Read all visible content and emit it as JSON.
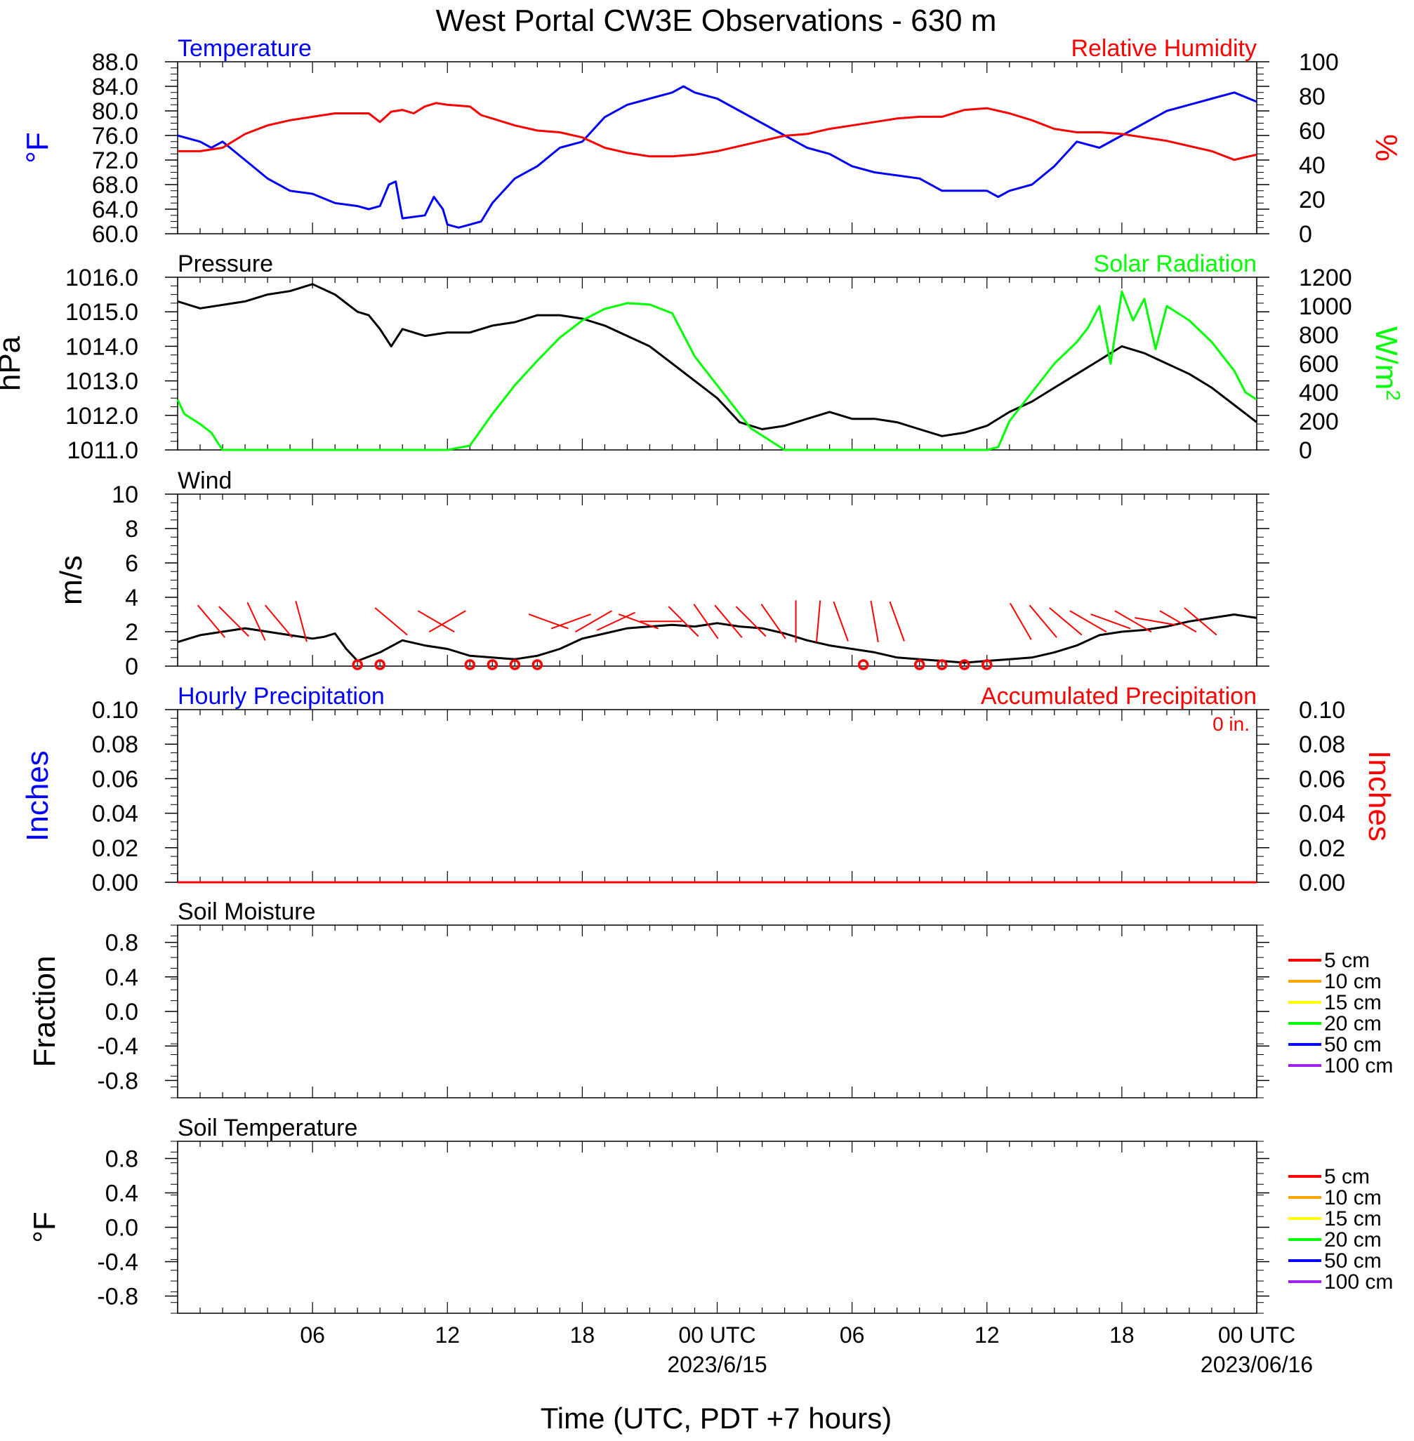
{
  "title": "West Portal CW3E Observations - 630 m",
  "xlabel": "Time (UTC, PDT +7 hours)",
  "x_ticks": [
    "06",
    "12",
    "18",
    "00 UTC",
    "06",
    "12",
    "18",
    "00 UTC"
  ],
  "x_dates": [
    "2023/6/15",
    "2023/06/16"
  ],
  "colors": {
    "blue": "#0000ff",
    "red": "#ff0000",
    "green": "#00ff00",
    "black": "#000000"
  },
  "legend_depths": [
    {
      "label": "5 cm",
      "color": "#ff0000"
    },
    {
      "label": "10 cm",
      "color": "#ffa500"
    },
    {
      "label": "15 cm",
      "color": "#ffff00"
    },
    {
      "label": "20 cm",
      "color": "#00ff00"
    },
    {
      "label": "50 cm",
      "color": "#0000ff"
    },
    {
      "label": "100 cm",
      "color": "#a020f0"
    }
  ],
  "chart_data": [
    {
      "type": "line",
      "title_left": "Temperature",
      "title_right": "Relative Humidity",
      "ylabel_left": "°F",
      "ylabel_right": "%",
      "x_range_hours": [
        0,
        48
      ],
      "ylim_left": [
        60,
        88
      ],
      "ylim_right": [
        0,
        100
      ],
      "yticks_left": [
        "88.0",
        "84.0",
        "80.0",
        "76.0",
        "72.0",
        "68.0",
        "64.0",
        "60.0"
      ],
      "yticks_right": [
        "100",
        "80",
        "60",
        "40",
        "20",
        "0"
      ],
      "series": [
        {
          "name": "Temperature",
          "axis": "left",
          "color": "#0000ff",
          "x": [
            0,
            1,
            1.5,
            2,
            3,
            4,
            5,
            6,
            7,
            8,
            8.5,
            9,
            9.4,
            9.7,
            10,
            11,
            11.4,
            11.8,
            12,
            12.5,
            13,
            13.5,
            14,
            15,
            16,
            17,
            18,
            19,
            20,
            21,
            22,
            22.5,
            23,
            24,
            25,
            26,
            27,
            28,
            29,
            30,
            31,
            32,
            33,
            34,
            35,
            36,
            36.5,
            37,
            38,
            39,
            40,
            41,
            42,
            43,
            44,
            45,
            46,
            47,
            48
          ],
          "y": [
            76,
            75,
            74,
            75,
            72,
            69,
            67,
            66.5,
            65,
            64.5,
            64,
            64.5,
            68,
            68.5,
            62.5,
            63,
            66,
            64,
            61.5,
            61,
            61.5,
            62,
            65,
            69,
            71,
            74,
            75,
            79,
            81,
            82,
            83,
            84,
            83,
            82,
            80,
            78,
            76,
            74,
            73,
            71,
            70,
            69.5,
            69,
            67,
            67,
            67,
            66,
            67,
            68,
            71,
            75,
            74,
            76,
            78,
            80,
            81,
            82,
            83,
            81.5
          ]
        },
        {
          "name": "Relative Humidity",
          "axis": "right",
          "color": "#ff0000",
          "x": [
            0,
            1,
            2,
            3,
            4,
            5,
            6,
            7,
            8,
            8.5,
            9,
            9.5,
            10,
            10.5,
            11,
            11.5,
            12,
            13,
            13.5,
            14,
            15,
            16,
            17,
            18,
            19,
            20,
            21,
            22,
            23,
            24,
            25,
            26,
            27,
            28,
            29,
            30,
            31,
            32,
            33,
            34,
            35,
            36,
            37,
            38,
            39,
            40,
            41,
            42,
            43,
            44,
            45,
            46,
            47,
            48
          ],
          "y": [
            48,
            48,
            50,
            58,
            63,
            66,
            68,
            70,
            70,
            70,
            65,
            71,
            72,
            70,
            74,
            76,
            75,
            74,
            69,
            67,
            63,
            60,
            59,
            56,
            50,
            47,
            45,
            45,
            46,
            48,
            51,
            54,
            57,
            58,
            61,
            63,
            65,
            67,
            68,
            68,
            72,
            73,
            70,
            66,
            61,
            59,
            59,
            58,
            56,
            54,
            51,
            48,
            43,
            46
          ]
        }
      ]
    },
    {
      "type": "line",
      "title_left": "Pressure",
      "title_right": "Solar Radiation",
      "ylabel_left": "hPa",
      "ylabel_right": "W/m",
      "ylabel_right_sup": "2",
      "x_range_hours": [
        0,
        48
      ],
      "ylim_left": [
        1011,
        1016
      ],
      "ylim_right": [
        0,
        1200
      ],
      "yticks_left": [
        "1016.0",
        "1015.0",
        "1014.0",
        "1013.0",
        "1012.0",
        "1011.0"
      ],
      "yticks_right": [
        "1200",
        "1000",
        "800",
        "600",
        "400",
        "200",
        "0"
      ],
      "series": [
        {
          "name": "Pressure",
          "axis": "left",
          "color": "#000000",
          "x": [
            0,
            1,
            2,
            3,
            4,
            5,
            6,
            7,
            8,
            8.5,
            9,
            9.5,
            10,
            11,
            12,
            13,
            14,
            15,
            16,
            17,
            18,
            19,
            20,
            21,
            22,
            23,
            24,
            25,
            26,
            27,
            28,
            29,
            30,
            31,
            32,
            33,
            34,
            35,
            36,
            37,
            38,
            39,
            40,
            41,
            42,
            43,
            44,
            45,
            46,
            47,
            48
          ],
          "y": [
            1015.3,
            1015.1,
            1015.2,
            1015.3,
            1015.5,
            1015.6,
            1015.8,
            1015.5,
            1015.0,
            1014.9,
            1014.5,
            1014.0,
            1014.5,
            1014.3,
            1014.4,
            1014.4,
            1014.6,
            1014.7,
            1014.9,
            1014.9,
            1014.8,
            1014.6,
            1014.3,
            1014.0,
            1013.5,
            1013.0,
            1012.5,
            1011.8,
            1011.6,
            1011.7,
            1011.9,
            1012.1,
            1011.9,
            1011.9,
            1011.8,
            1011.6,
            1011.4,
            1011.5,
            1011.7,
            1012.1,
            1012.4,
            1012.8,
            1013.2,
            1013.6,
            1014.0,
            1013.8,
            1013.5,
            1013.2,
            1012.8,
            1012.3,
            1011.8
          ]
        },
        {
          "name": "Solar Radiation",
          "axis": "right",
          "color": "#00ff00",
          "x": [
            0,
            0.3,
            1,
            1.5,
            2,
            12,
            13,
            14,
            15,
            16,
            17,
            18,
            19,
            20,
            21,
            22,
            22.5,
            23,
            24,
            24.5,
            25,
            25.5,
            26,
            27,
            36,
            36.5,
            37,
            38,
            39,
            40,
            40.5,
            41,
            41.5,
            42,
            42.5,
            43,
            43.5,
            44,
            45,
            46,
            47,
            47.5,
            48
          ],
          "y": [
            350,
            250,
            180,
            120,
            0,
            0,
            30,
            250,
            450,
            620,
            780,
            900,
            980,
            1020,
            1010,
            950,
            800,
            650,
            450,
            350,
            250,
            150,
            100,
            0,
            0,
            20,
            200,
            400,
            600,
            750,
            850,
            1000,
            600,
            1100,
            900,
            1050,
            700,
            1000,
            900,
            750,
            550,
            400,
            350
          ]
        }
      ]
    },
    {
      "type": "line",
      "title_left": "Wind",
      "ylabel_left": "m/s",
      "x_range_hours": [
        0,
        48
      ],
      "ylim_left": [
        0,
        10
      ],
      "yticks_left": [
        "10",
        "8",
        "6",
        "4",
        "2",
        "0"
      ],
      "series": [
        {
          "name": "Wind",
          "axis": "left",
          "color": "#000000",
          "x": [
            0,
            1,
            2,
            3,
            4,
            5,
            6,
            6.5,
            7,
            7.5,
            8,
            9,
            10,
            11,
            12,
            13,
            14,
            15,
            16,
            17,
            18,
            19,
            20,
            21,
            22,
            23,
            24,
            25,
            26,
            27,
            28,
            29,
            30,
            31,
            32,
            33,
            34,
            35,
            36,
            37,
            38,
            39,
            40,
            41,
            42,
            43,
            44,
            45,
            46,
            47,
            48
          ],
          "y": [
            1.4,
            1.8,
            2.0,
            2.2,
            2.0,
            1.8,
            1.6,
            1.7,
            1.9,
            1.0,
            0.3,
            0.8,
            1.5,
            1.2,
            1.0,
            0.6,
            0.5,
            0.4,
            0.6,
            1.0,
            1.6,
            1.9,
            2.2,
            2.3,
            2.4,
            2.3,
            2.5,
            2.3,
            2.2,
            1.9,
            1.5,
            1.2,
            1.0,
            0.8,
            0.5,
            0.4,
            0.3,
            0.2,
            0.3,
            0.4,
            0.5,
            0.8,
            1.2,
            1.8,
            2.0,
            2.1,
            2.3,
            2.6,
            2.8,
            3.0,
            2.8
          ]
        },
        {
          "name": "barbs",
          "color": "#ff0000",
          "barbs": [
            {
              "x": 1.5,
              "dir": 320
            },
            {
              "x": 2.5,
              "dir": 315
            },
            {
              "x": 3.5,
              "dir": 335
            },
            {
              "x": 4.5,
              "dir": 320
            },
            {
              "x": 5.5,
              "dir": 345
            },
            {
              "x": 8.0,
              "calm": true
            },
            {
              "x": 9.0,
              "calm": true
            },
            {
              "x": 9.5,
              "dir": 310
            },
            {
              "x": 11.5,
              "dir": 300
            },
            {
              "x": 12.0,
              "dir": 240
            },
            {
              "x": 13.0,
              "calm": true
            },
            {
              "x": 14.0,
              "calm": true
            },
            {
              "x": 15.0,
              "calm": true
            },
            {
              "x": 16.0,
              "calm": true
            },
            {
              "x": 16.5,
              "dir": 290
            },
            {
              "x": 17.5,
              "dir": 250
            },
            {
              "x": 18.5,
              "dir": 240
            },
            {
              "x": 19.5,
              "dir": 245
            },
            {
              "x": 20.5,
              "dir": 290
            },
            {
              "x": 21.5,
              "dir": 270
            },
            {
              "x": 22.5,
              "dir": 315
            },
            {
              "x": 23.5,
              "dir": 325
            },
            {
              "x": 24.5,
              "dir": 320
            },
            {
              "x": 25.5,
              "dir": 315
            },
            {
              "x": 26.5,
              "dir": 325
            },
            {
              "x": 27.5,
              "dir": 0
            },
            {
              "x": 28.5,
              "dir": 5
            },
            {
              "x": 29.5,
              "dir": 340
            },
            {
              "x": 30.5,
              "calm": true
            },
            {
              "x": 31.0,
              "dir": 170
            },
            {
              "x": 32.0,
              "dir": 160
            },
            {
              "x": 33.0,
              "calm": true
            },
            {
              "x": 34.0,
              "calm": true
            },
            {
              "x": 35.0,
              "calm": true
            },
            {
              "x": 36.0,
              "calm": true
            },
            {
              "x": 37.5,
              "dir": 150
            },
            {
              "x": 38.5,
              "dir": 140
            },
            {
              "x": 39.5,
              "dir": 310
            },
            {
              "x": 40.5,
              "dir": 300
            },
            {
              "x": 41.5,
              "dir": 290
            },
            {
              "x": 42.5,
              "dir": 300
            },
            {
              "x": 43.5,
              "dir": 280
            },
            {
              "x": 44.5,
              "dir": 300
            },
            {
              "x": 45.5,
              "dir": 310
            }
          ]
        }
      ]
    },
    {
      "type": "line",
      "title_left": "Hourly Precipitation",
      "title_right": "Accumulated Precipitation",
      "annotation": "0 in.",
      "ylabel_left": "Inches",
      "ylabel_right": "Inches",
      "x_range_hours": [
        0,
        48
      ],
      "ylim_left": [
        0,
        0.1
      ],
      "ylim_right": [
        0,
        0.1
      ],
      "yticks_left": [
        "0.10",
        "0.08",
        "0.06",
        "0.04",
        "0.02",
        "0.00"
      ],
      "yticks_right": [
        "0.10",
        "0.08",
        "0.06",
        "0.04",
        "0.02",
        "0.00"
      ],
      "series": [
        {
          "name": "Hourly Precipitation",
          "axis": "left",
          "color": "#0000ff",
          "x": [
            0,
            48
          ],
          "y": [
            0,
            0
          ]
        },
        {
          "name": "Accumulated Precipitation",
          "axis": "right",
          "color": "#ff0000",
          "x": [
            0,
            48
          ],
          "y": [
            0,
            0
          ]
        }
      ]
    },
    {
      "type": "line",
      "title_left": "Soil Moisture",
      "ylabel_left": "Fraction",
      "x_range_hours": [
        0,
        48
      ],
      "ylim_left": [
        -1,
        1
      ],
      "yticks_left": [
        "0.8",
        "0.4",
        "0.0",
        "-0.4",
        "-0.8"
      ],
      "series": []
    },
    {
      "type": "line",
      "title_left": "Soil Temperature",
      "ylabel_left": "°F",
      "x_range_hours": [
        0,
        48
      ],
      "ylim_left": [
        -1,
        1
      ],
      "yticks_left": [
        "0.8",
        "0.4",
        "0.0",
        "-0.4",
        "-0.8"
      ],
      "series": []
    }
  ]
}
